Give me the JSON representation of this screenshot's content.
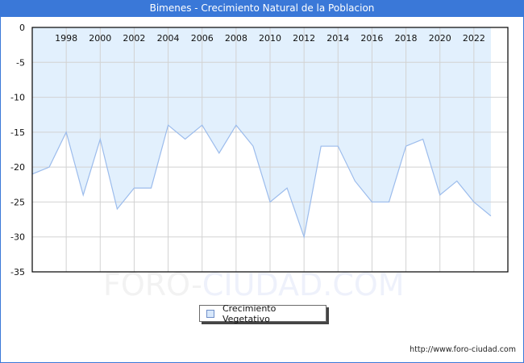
{
  "title": "Bimenes - Crecimiento Natural de la Poblacion",
  "watermark": {
    "part1": "FORO-",
    "part2": "CIUDAD.COM"
  },
  "legend": {
    "label": "Crecimiento Vegetativo"
  },
  "footer": {
    "url": "http://www.foro-ciudad.com"
  },
  "colors": {
    "titlebar": "#3a78d8",
    "fill": "#e2f0fd",
    "line": "#9cbcec",
    "grid": "#d2d2d2",
    "axis": "#000000"
  },
  "chart_data": {
    "type": "area",
    "title": "Bimenes - Crecimiento Natural de la Poblacion",
    "xlabel": "",
    "ylabel": "",
    "x": [
      1996,
      1997,
      1998,
      1999,
      2000,
      2001,
      2002,
      2003,
      2004,
      2005,
      2006,
      2007,
      2008,
      2009,
      2010,
      2011,
      2012,
      2013,
      2014,
      2015,
      2016,
      2017,
      2018,
      2019,
      2020,
      2021,
      2022,
      2023
    ],
    "series": [
      {
        "name": "Crecimiento Vegetativo",
        "values": [
          -21,
          -20,
          -15,
          -24,
          -16,
          -26,
          -23,
          -23,
          -14,
          -16,
          -14,
          -18,
          -14,
          -17,
          -25,
          -23,
          -30,
          -17,
          -17,
          -22,
          -25,
          -25,
          -17,
          -16,
          -24,
          -22,
          -25,
          -27
        ]
      }
    ],
    "x_tick_labels": [
      "1998",
      "2000",
      "2002",
      "2004",
      "2006",
      "2008",
      "2010",
      "2012",
      "2014",
      "2016",
      "2018",
      "2020",
      "2022"
    ],
    "y_tick_labels": [
      "0",
      "-5",
      "-10",
      "-15",
      "-20",
      "-25",
      "-30",
      "-35"
    ],
    "ylim": [
      -35,
      0
    ],
    "xlim": [
      1996,
      2024
    ],
    "grid": true,
    "legend_position": "bottom-center",
    "x_axis_labels_position": "top-inside"
  }
}
